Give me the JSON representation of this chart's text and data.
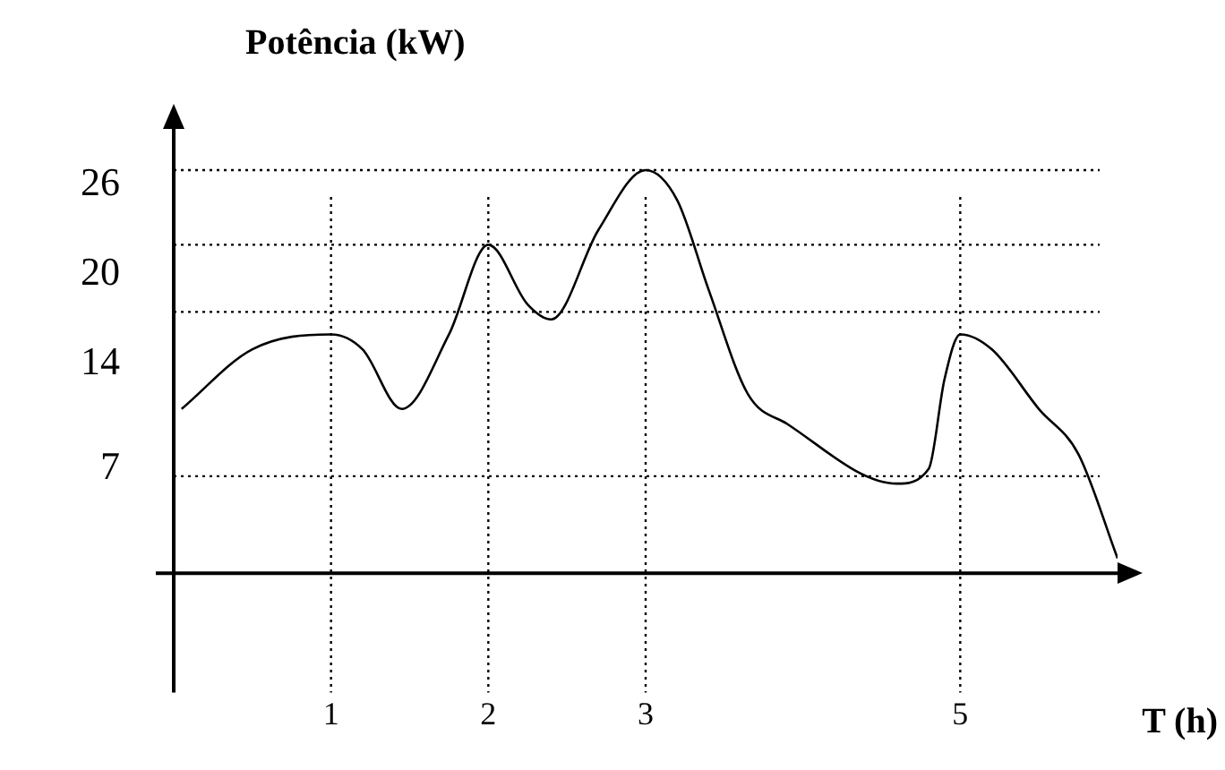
{
  "chart_data": {
    "type": "line",
    "ylabel": "Potência (kW)",
    "xlabel": "T (h)",
    "color": "#000000",
    "x": [
      0.05,
      0.5,
      1,
      1.2,
      1.45,
      1.75,
      2,
      2.25,
      2.4,
      2.7,
      3,
      3.2,
      3.4,
      3.65,
      3.9,
      4.6,
      4.8,
      4.9,
      5,
      5.2,
      5.5,
      5.75,
      6
    ],
    "values": [
      11,
      15,
      16,
      15,
      11,
      16,
      22,
      18,
      17,
      23,
      27,
      25,
      19,
      12,
      10,
      6,
      7,
      13,
      16,
      15,
      11,
      8,
      1
    ],
    "xlim": [
      0,
      6
    ],
    "ylim": [
      -8,
      30
    ],
    "xticks": [
      1,
      2,
      3,
      5
    ],
    "yticks": [
      7,
      14,
      20,
      26
    ],
    "ref_lines": [
      {
        "axis": "y",
        "value": 27,
        "line_style": "dotted"
      },
      {
        "axis": "y",
        "value": 22,
        "line_style": "dotted"
      },
      {
        "axis": "y",
        "value": 17.5,
        "line_style": "dotted"
      },
      {
        "axis": "y",
        "value": 6.5,
        "line_style": "dotted"
      },
      {
        "axis": "x",
        "value": 1,
        "line_style": "dotted"
      },
      {
        "axis": "x",
        "value": 2,
        "line_style": "dotted"
      },
      {
        "axis": "x",
        "value": 3,
        "line_style": "dotted"
      },
      {
        "axis": "x",
        "value": 5,
        "line_style": "dotted"
      }
    ],
    "grid": false,
    "legend": false,
    "marker": "none",
    "line_style": "solid"
  }
}
